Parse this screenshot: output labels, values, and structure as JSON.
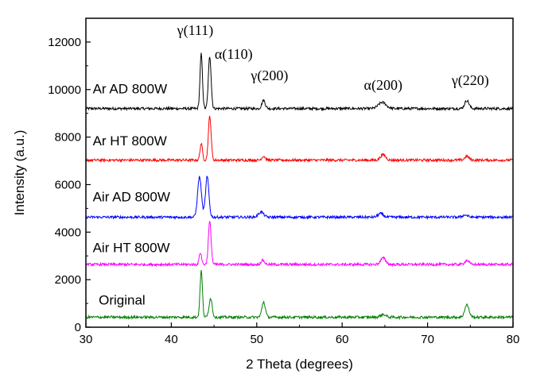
{
  "chart_data": {
    "type": "line",
    "title": "",
    "xlabel": "2 Theta (degrees)",
    "ylabel": "Intensity (a.u.)",
    "xlim": [
      30,
      80
    ],
    "ylim": [
      0,
      13000
    ],
    "xticks": [
      30,
      40,
      50,
      60,
      70,
      80
    ],
    "yticks": [
      0,
      2000,
      4000,
      6000,
      8000,
      10000,
      12000
    ],
    "xtick_labels": [
      "30",
      "40",
      "50",
      "60",
      "70",
      "80"
    ],
    "ytick_labels": [
      "0",
      "2000",
      "4000",
      "6000",
      "8000",
      "10000",
      "12000"
    ],
    "grid": false,
    "legend": "none",
    "series": [
      {
        "name": "Ar AD 800W",
        "color": "#000000",
        "baseline": 9200,
        "label_at": [
          30.8,
          9850
        ],
        "peaks": [
          [
            43.5,
            2300,
            0.14
          ],
          [
            44.5,
            2200,
            0.16
          ],
          [
            50.8,
            350,
            0.2
          ],
          [
            64.7,
            260,
            0.45
          ],
          [
            74.6,
            340,
            0.25
          ]
        ]
      },
      {
        "name": "Ar HT 800W",
        "color": "#ff0000",
        "baseline": 7030,
        "label_at": [
          30.8,
          7650
        ],
        "peaks": [
          [
            43.5,
            700,
            0.14
          ],
          [
            44.5,
            1850,
            0.16
          ],
          [
            50.8,
            170,
            0.2
          ],
          [
            64.8,
            230,
            0.3
          ],
          [
            74.6,
            160,
            0.25
          ]
        ]
      },
      {
        "name": "Air AD 800W",
        "color": "#0000ff",
        "baseline": 4630,
        "label_at": [
          30.8,
          5300
        ],
        "peaks": [
          [
            43.3,
            1700,
            0.22
          ],
          [
            44.2,
            1700,
            0.2
          ],
          [
            50.5,
            220,
            0.3
          ],
          [
            64.5,
            150,
            0.3
          ],
          [
            74.4,
            90,
            0.3
          ]
        ]
      },
      {
        "name": "Air HT 800W",
        "color": "#ff00ff",
        "baseline": 2640,
        "label_at": [
          30.8,
          3150
        ],
        "peaks": [
          [
            43.4,
            500,
            0.14
          ],
          [
            44.5,
            1800,
            0.16
          ],
          [
            50.7,
            180,
            0.2
          ],
          [
            64.8,
            270,
            0.3
          ],
          [
            74.6,
            170,
            0.25
          ]
        ]
      },
      {
        "name": "Original",
        "color": "#008000",
        "baseline": 420,
        "label_at": [
          31.5,
          950
        ],
        "peaks": [
          [
            43.5,
            1950,
            0.14
          ],
          [
            44.6,
            800,
            0.18
          ],
          [
            50.8,
            650,
            0.2
          ],
          [
            64.8,
            120,
            0.3
          ],
          [
            74.6,
            520,
            0.25
          ]
        ]
      }
    ],
    "annotations": [
      {
        "text": "γ(111)",
        "x": 42.8,
        "y": 12300
      },
      {
        "text": "α(110)",
        "x": 47.3,
        "y": 11300
      },
      {
        "text": "γ(200)",
        "x": 51.5,
        "y": 10400
      },
      {
        "text": "α(200)",
        "x": 64.8,
        "y": 10000
      },
      {
        "text": "γ(220)",
        "x": 75.0,
        "y": 10200
      }
    ]
  }
}
